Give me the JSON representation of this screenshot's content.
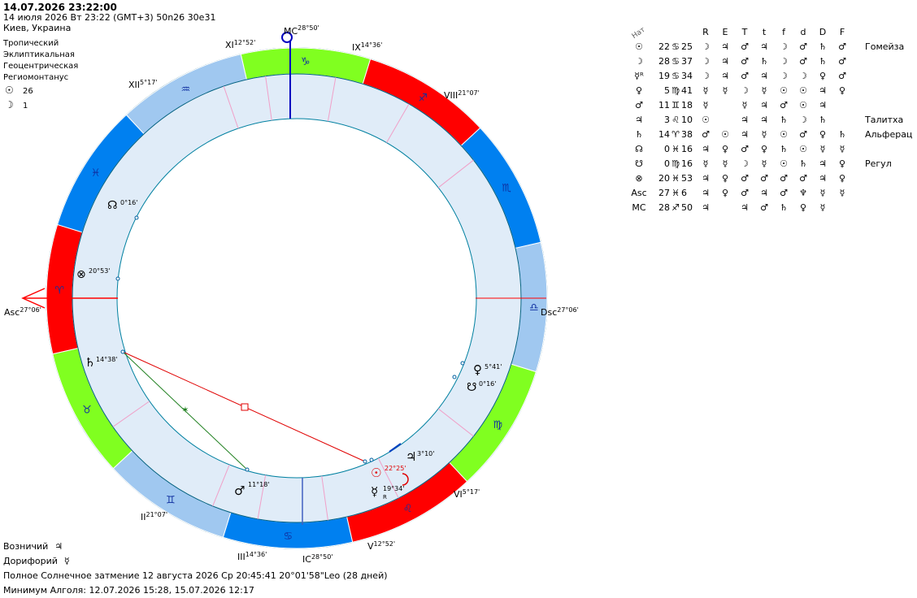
{
  "header": {
    "datetime": "14.07.2026 23:22:00",
    "line2": "14 июля 2026  Вт  23:22 (GMT+3) 50n26  30e31",
    "location": "Киев, Украина"
  },
  "settings": {
    "zodiac": "Тропический",
    "coords": "Эклиптикальная",
    "center": "Геоцентрическая",
    "houses": "Региомонтанус",
    "sun_value": "26",
    "moon_value": "1"
  },
  "colors": {
    "red": "#ff0000",
    "green": "#80ff20",
    "blue": "#0080f0",
    "lightblue": "#a0c8f0",
    "inner_ring": "#e0ecf8",
    "aspect_red": "#e00000",
    "aspect_green": "#208020"
  },
  "chart": {
    "mc_label": "MC",
    "mc_degree": "28°50'",
    "ic_label": "IC",
    "ic_degree": "28°50'",
    "asc_label": "Asc",
    "asc_degree": "27°06'",
    "dsc_label": "Dsc",
    "dsc_degree": "27°06'",
    "house_cusps": [
      {
        "name": "XI",
        "degree": "12°52'"
      },
      {
        "name": "IX",
        "degree": "14°36'"
      },
      {
        "name": "XII",
        "degree": "5°17'"
      },
      {
        "name": "VIII",
        "degree": "21°07'"
      },
      {
        "name": "VI",
        "degree": "5°17'"
      },
      {
        "name": "II",
        "degree": "21°07'"
      },
      {
        "name": "III",
        "degree": "14°36'"
      },
      {
        "name": "V",
        "degree": "12°52'"
      }
    ],
    "planets": [
      {
        "glyph": "☊",
        "degree": "0°16'"
      },
      {
        "glyph": "⊗",
        "degree": "20°53'"
      },
      {
        "glyph": "♄",
        "degree": "14°38'"
      },
      {
        "glyph": "♀",
        "degree": "5°41'"
      },
      {
        "glyph": "☋",
        "degree": "0°16'"
      },
      {
        "glyph": "♃",
        "degree": "3°10'"
      },
      {
        "glyph": "☉",
        "degree": "22°25'"
      },
      {
        "glyph": "☿",
        "degree": "19°34'",
        "retro": "R"
      },
      {
        "glyph": "♂",
        "degree": "11°18'"
      }
    ]
  },
  "table": {
    "nat_label": "Нат",
    "headers": [
      "R",
      "E",
      "T",
      "t",
      "f",
      "d",
      "D",
      "F"
    ],
    "rows": [
      {
        "glyph": "☉",
        "deg": "22",
        "sign": "♋",
        "min": "25",
        "ess": [
          "☽",
          "♃",
          "♂",
          "♃",
          "☽",
          "♂",
          "♄",
          "♂"
        ],
        "star": "Гомейза"
      },
      {
        "glyph": "☽",
        "deg": "28",
        "sign": "♋",
        "min": "37",
        "ess": [
          "☽",
          "♃",
          "♂",
          "♄",
          "☽",
          "♂",
          "♄",
          "♂"
        ],
        "star": ""
      },
      {
        "glyph": "☿ᴿ",
        "deg": "19",
        "sign": "♋",
        "min": "34",
        "ess": [
          "☽",
          "♃",
          "♂",
          "♃",
          "☽",
          "☽",
          "♀",
          "♂"
        ],
        "star": ""
      },
      {
        "glyph": "♀",
        "deg": "5",
        "sign": "♍",
        "min": "41",
        "ess": [
          "☿",
          "☿",
          "☽",
          "☿",
          "☉",
          "☉",
          "♃",
          "♀"
        ],
        "star": ""
      },
      {
        "glyph": "♂",
        "deg": "11",
        "sign": "♊",
        "min": "18",
        "ess": [
          "☿",
          "",
          "☿",
          "♃",
          "♂",
          "☉",
          "♃",
          ""
        ],
        "star": ""
      },
      {
        "glyph": "♃",
        "deg": "3",
        "sign": "♌",
        "min": "10",
        "ess": [
          "☉",
          "",
          "♃",
          "♃",
          "♄",
          "☽",
          "♄",
          ""
        ],
        "star": "Талитха"
      },
      {
        "glyph": "♄",
        "deg": "14",
        "sign": "♈",
        "min": "38",
        "ess": [
          "♂",
          "☉",
          "♃",
          "☿",
          "☉",
          "♂",
          "♀",
          "♄"
        ],
        "star": "Альферац"
      },
      {
        "glyph": "☊",
        "deg": "0",
        "sign": "♓",
        "min": "16",
        "ess": [
          "♃",
          "♀",
          "♂",
          "♀",
          "♄",
          "☉",
          "☿",
          "☿"
        ],
        "star": ""
      },
      {
        "glyph": "☋",
        "deg": "0",
        "sign": "♍",
        "min": "16",
        "ess": [
          "☿",
          "☿",
          "☽",
          "☿",
          "☉",
          "♄",
          "♃",
          "♀"
        ],
        "star": "Регул"
      },
      {
        "glyph": "⊗",
        "deg": "20",
        "sign": "♓",
        "min": "53",
        "ess": [
          "♃",
          "♀",
          "♂",
          "♂",
          "♂",
          "♂",
          "♃",
          "♀"
        ],
        "star": ""
      },
      {
        "glyph": "Asc",
        "deg": "27",
        "sign": "♓",
        "min": "6",
        "ess": [
          "♃",
          "♀",
          "♂",
          "♃",
          "♂",
          "♆",
          "☿",
          "☿"
        ],
        "star": ""
      },
      {
        "glyph": "MC",
        "deg": "28",
        "sign": "♐",
        "min": "50",
        "ess": [
          "♃",
          "",
          "♃",
          "♂",
          "♄",
          "♀",
          "☿",
          ""
        ],
        "star": ""
      }
    ]
  },
  "footer": {
    "vozn_label": "Возничий",
    "vozn_glyph": "♃",
    "dor_label": "Дорифорий",
    "dor_glyph": "☿",
    "eclipse": "Полное Солнечное затмение 12 августа 2026 Ср 20:45:41 20°01'58\"Leo (28 дней)",
    "algol": "Минимум Алголя: 12.07.2026 15:28,  15.07.2026 12:17"
  }
}
